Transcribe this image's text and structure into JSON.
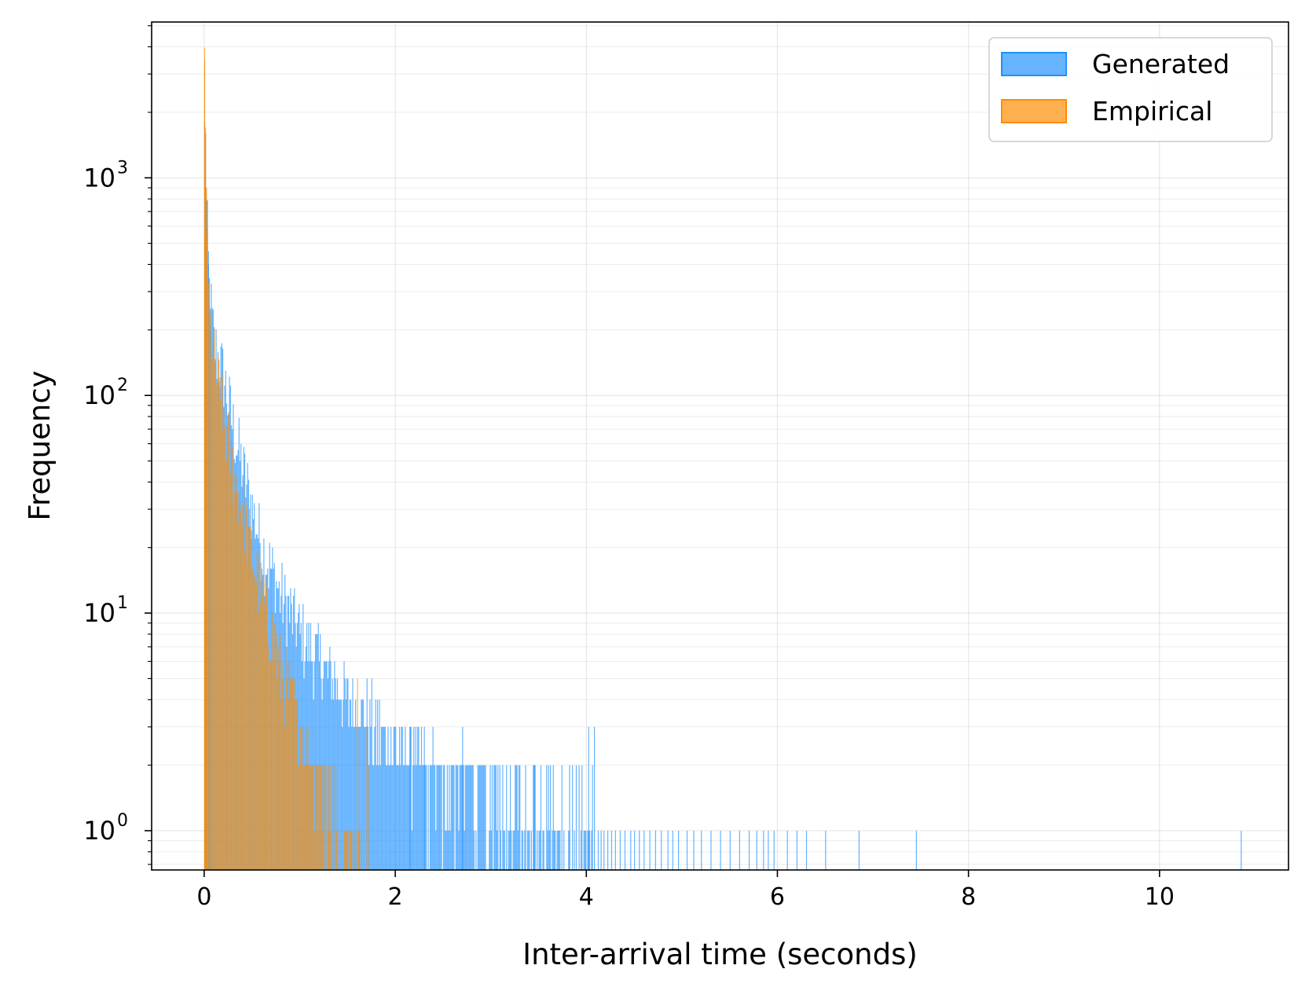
{
  "chart_data": {
    "type": "bar",
    "title": "",
    "xlabel": "Inter-arrival time (seconds)",
    "ylabel": "Frequency",
    "xlim": [
      -0.55,
      11.35
    ],
    "ylim": [
      0.66,
      5200
    ],
    "yscale": "log",
    "xticks": [
      0,
      2,
      4,
      6,
      8,
      10
    ],
    "xtick_labels": [
      "0",
      "2",
      "4",
      "6",
      "8",
      "10"
    ],
    "yticks": [
      1,
      10,
      100,
      1000
    ],
    "ytick_labels": [
      {
        "base": "10",
        "exp": "0"
      },
      {
        "base": "10",
        "exp": "1"
      },
      {
        "base": "10",
        "exp": "2"
      },
      {
        "base": "10",
        "exp": "3"
      }
    ],
    "grid": true,
    "legend_position": "top-right",
    "bin_width": 0.01,
    "series": [
      {
        "name": "Generated",
        "color": "#1e90ff",
        "curve": [
          [
            0.0,
            1600
          ],
          [
            0.02,
            700
          ],
          [
            0.05,
            300
          ],
          [
            0.1,
            170
          ],
          [
            0.2,
            120
          ],
          [
            0.3,
            70
          ],
          [
            0.4,
            45
          ],
          [
            0.5,
            30
          ],
          [
            0.6,
            20
          ],
          [
            0.8,
            12
          ],
          [
            1.0,
            8
          ],
          [
            1.2,
            6
          ],
          [
            1.5,
            4
          ],
          [
            2.0,
            2.4
          ],
          [
            2.5,
            1.7
          ],
          [
            3.0,
            1.4
          ],
          [
            3.5,
            1.1
          ],
          [
            4.1,
            0.9
          ]
        ],
        "tail_bins": [
          4.12,
          4.15,
          4.18,
          4.22,
          4.26,
          4.3,
          4.35,
          4.4,
          4.46,
          4.5,
          4.55,
          4.6,
          4.66,
          4.72,
          4.78,
          4.85,
          4.9,
          4.96,
          5.05,
          5.12,
          5.2,
          5.3,
          5.4,
          5.5,
          5.6,
          5.7,
          5.78,
          5.85,
          5.9,
          5.96,
          6.1,
          6.2,
          6.3,
          6.5,
          6.85,
          7.45,
          10.85
        ],
        "spikes": [
          [
            0.01,
            1600
          ],
          [
            0.02,
            800
          ],
          [
            0.04,
            400
          ],
          [
            0.06,
            250
          ],
          [
            3.45,
            2
          ],
          [
            3.6,
            2
          ],
          [
            3.82,
            2
          ],
          [
            4.02,
            3
          ],
          [
            4.08,
            3
          ],
          [
            2.7,
            3
          ],
          [
            2.3,
            3
          ],
          [
            2.15,
            3
          ]
        ]
      },
      {
        "name": "Empirical",
        "color": "#ff8c00",
        "curve": [
          [
            0.0,
            3500
          ],
          [
            0.01,
            1000
          ],
          [
            0.03,
            400
          ],
          [
            0.05,
            220
          ],
          [
            0.1,
            140
          ],
          [
            0.2,
            80
          ],
          [
            0.3,
            45
          ],
          [
            0.4,
            30
          ],
          [
            0.5,
            18
          ],
          [
            0.6,
            12
          ],
          [
            0.7,
            8
          ],
          [
            0.8,
            5.5
          ],
          [
            0.9,
            4
          ],
          [
            1.0,
            3
          ],
          [
            1.1,
            2.2
          ],
          [
            1.2,
            1.7
          ],
          [
            1.3,
            1.3
          ],
          [
            1.5,
            1
          ],
          [
            1.65,
            0.8
          ]
        ],
        "tail_bins": [],
        "spikes": [
          [
            0.0,
            3500
          ],
          [
            0.01,
            1700
          ],
          [
            0.02,
            900
          ],
          [
            1.6,
            5
          ],
          [
            1.7,
            3
          ],
          [
            1.72,
            2
          ]
        ]
      }
    ]
  }
}
